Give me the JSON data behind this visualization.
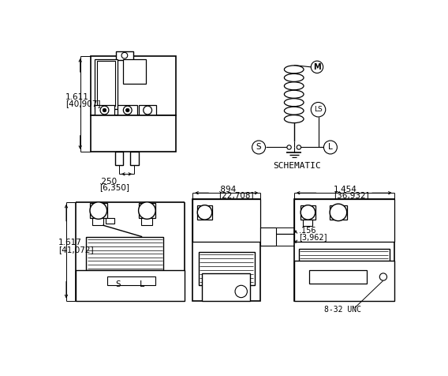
{
  "background_color": "#ffffff",
  "line_color": "#000000",
  "figsize": [
    5.68,
    4.76
  ],
  "dpi": 100,
  "dim_tl_h1": "1.611",
  "dim_tl_h2": "[40,907]",
  "dim_tl_w1": ".250",
  "dim_tl_w2": "[6,350]",
  "dim_bl_h1": "1.617",
  "dim_bl_h2": "[41,072]",
  "dim_bc_w1": ".894",
  "dim_bc_w2": "[22,708]",
  "dim_br_w1": "1.454",
  "dim_br_w2": "[36,932]",
  "dim_bc_h1": ".156",
  "dim_bc_h2": "[3,962]",
  "label_schematic": "SCHEMATIC",
  "label_M": "M",
  "label_LS": "LS",
  "label_S": "S",
  "label_L": "L",
  "label_8_32": "8-32 UNC"
}
